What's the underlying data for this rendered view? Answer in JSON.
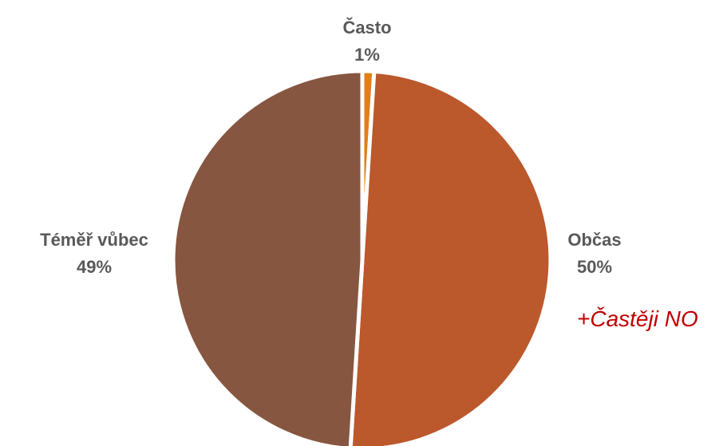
{
  "chart_data": {
    "type": "pie",
    "slices": [
      {
        "label": "Často",
        "value": 1,
        "value_label": "1%",
        "color": "#e07f1a"
      },
      {
        "label": "Občas",
        "value": 50,
        "value_label": "50%",
        "color": "#bb582c"
      },
      {
        "label": "Téměř vůbec",
        "value": 49,
        "value_label": "49%",
        "color": "#865641"
      }
    ],
    "annotation": "+Častěji NO"
  },
  "colors": {
    "label_text": "#595959",
    "annotation_text": "#c00000",
    "slice_separator": "#ffffff"
  }
}
